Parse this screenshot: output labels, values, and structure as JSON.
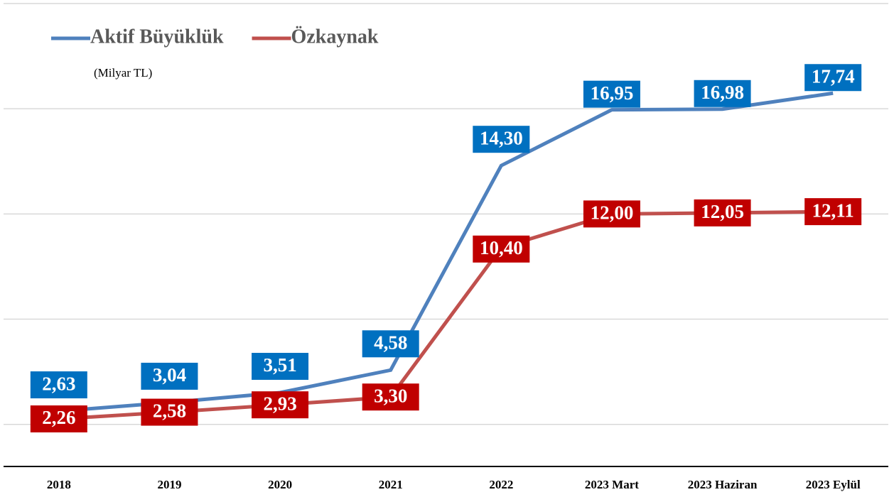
{
  "chart_data": {
    "type": "line",
    "subtitle": "(Milyar TL)",
    "categories": [
      "2018",
      "2019",
      "2020",
      "2021",
      "2022",
      "2023 Mart",
      "2023 Haziran",
      "2023 Eylül"
    ],
    "series": [
      {
        "name": "Aktif Büyüklük",
        "color": "#4f81bd",
        "label_color": "#0070c0",
        "values": [
          2.63,
          3.04,
          3.51,
          4.58,
          14.3,
          16.95,
          16.98,
          17.74
        ],
        "value_labels": [
          "2,63",
          "3,04",
          "3,51",
          "4,58",
          "14,30",
          "16,95",
          "16,98",
          "17,74"
        ]
      },
      {
        "name": "Özkaynak",
        "color": "#c0504d",
        "label_color": "#c00000",
        "values": [
          2.26,
          2.58,
          2.93,
          3.3,
          10.4,
          12.0,
          12.05,
          12.11
        ],
        "value_labels": [
          "2,26",
          "2,58",
          "2,93",
          "3,30",
          "10,40",
          "12,00",
          "12,05",
          "12,11"
        ]
      }
    ],
    "ylim": [
      0,
      22
    ],
    "yticks": [
      2,
      7,
      12,
      17,
      22
    ],
    "grid": true,
    "legend": "top-left"
  }
}
